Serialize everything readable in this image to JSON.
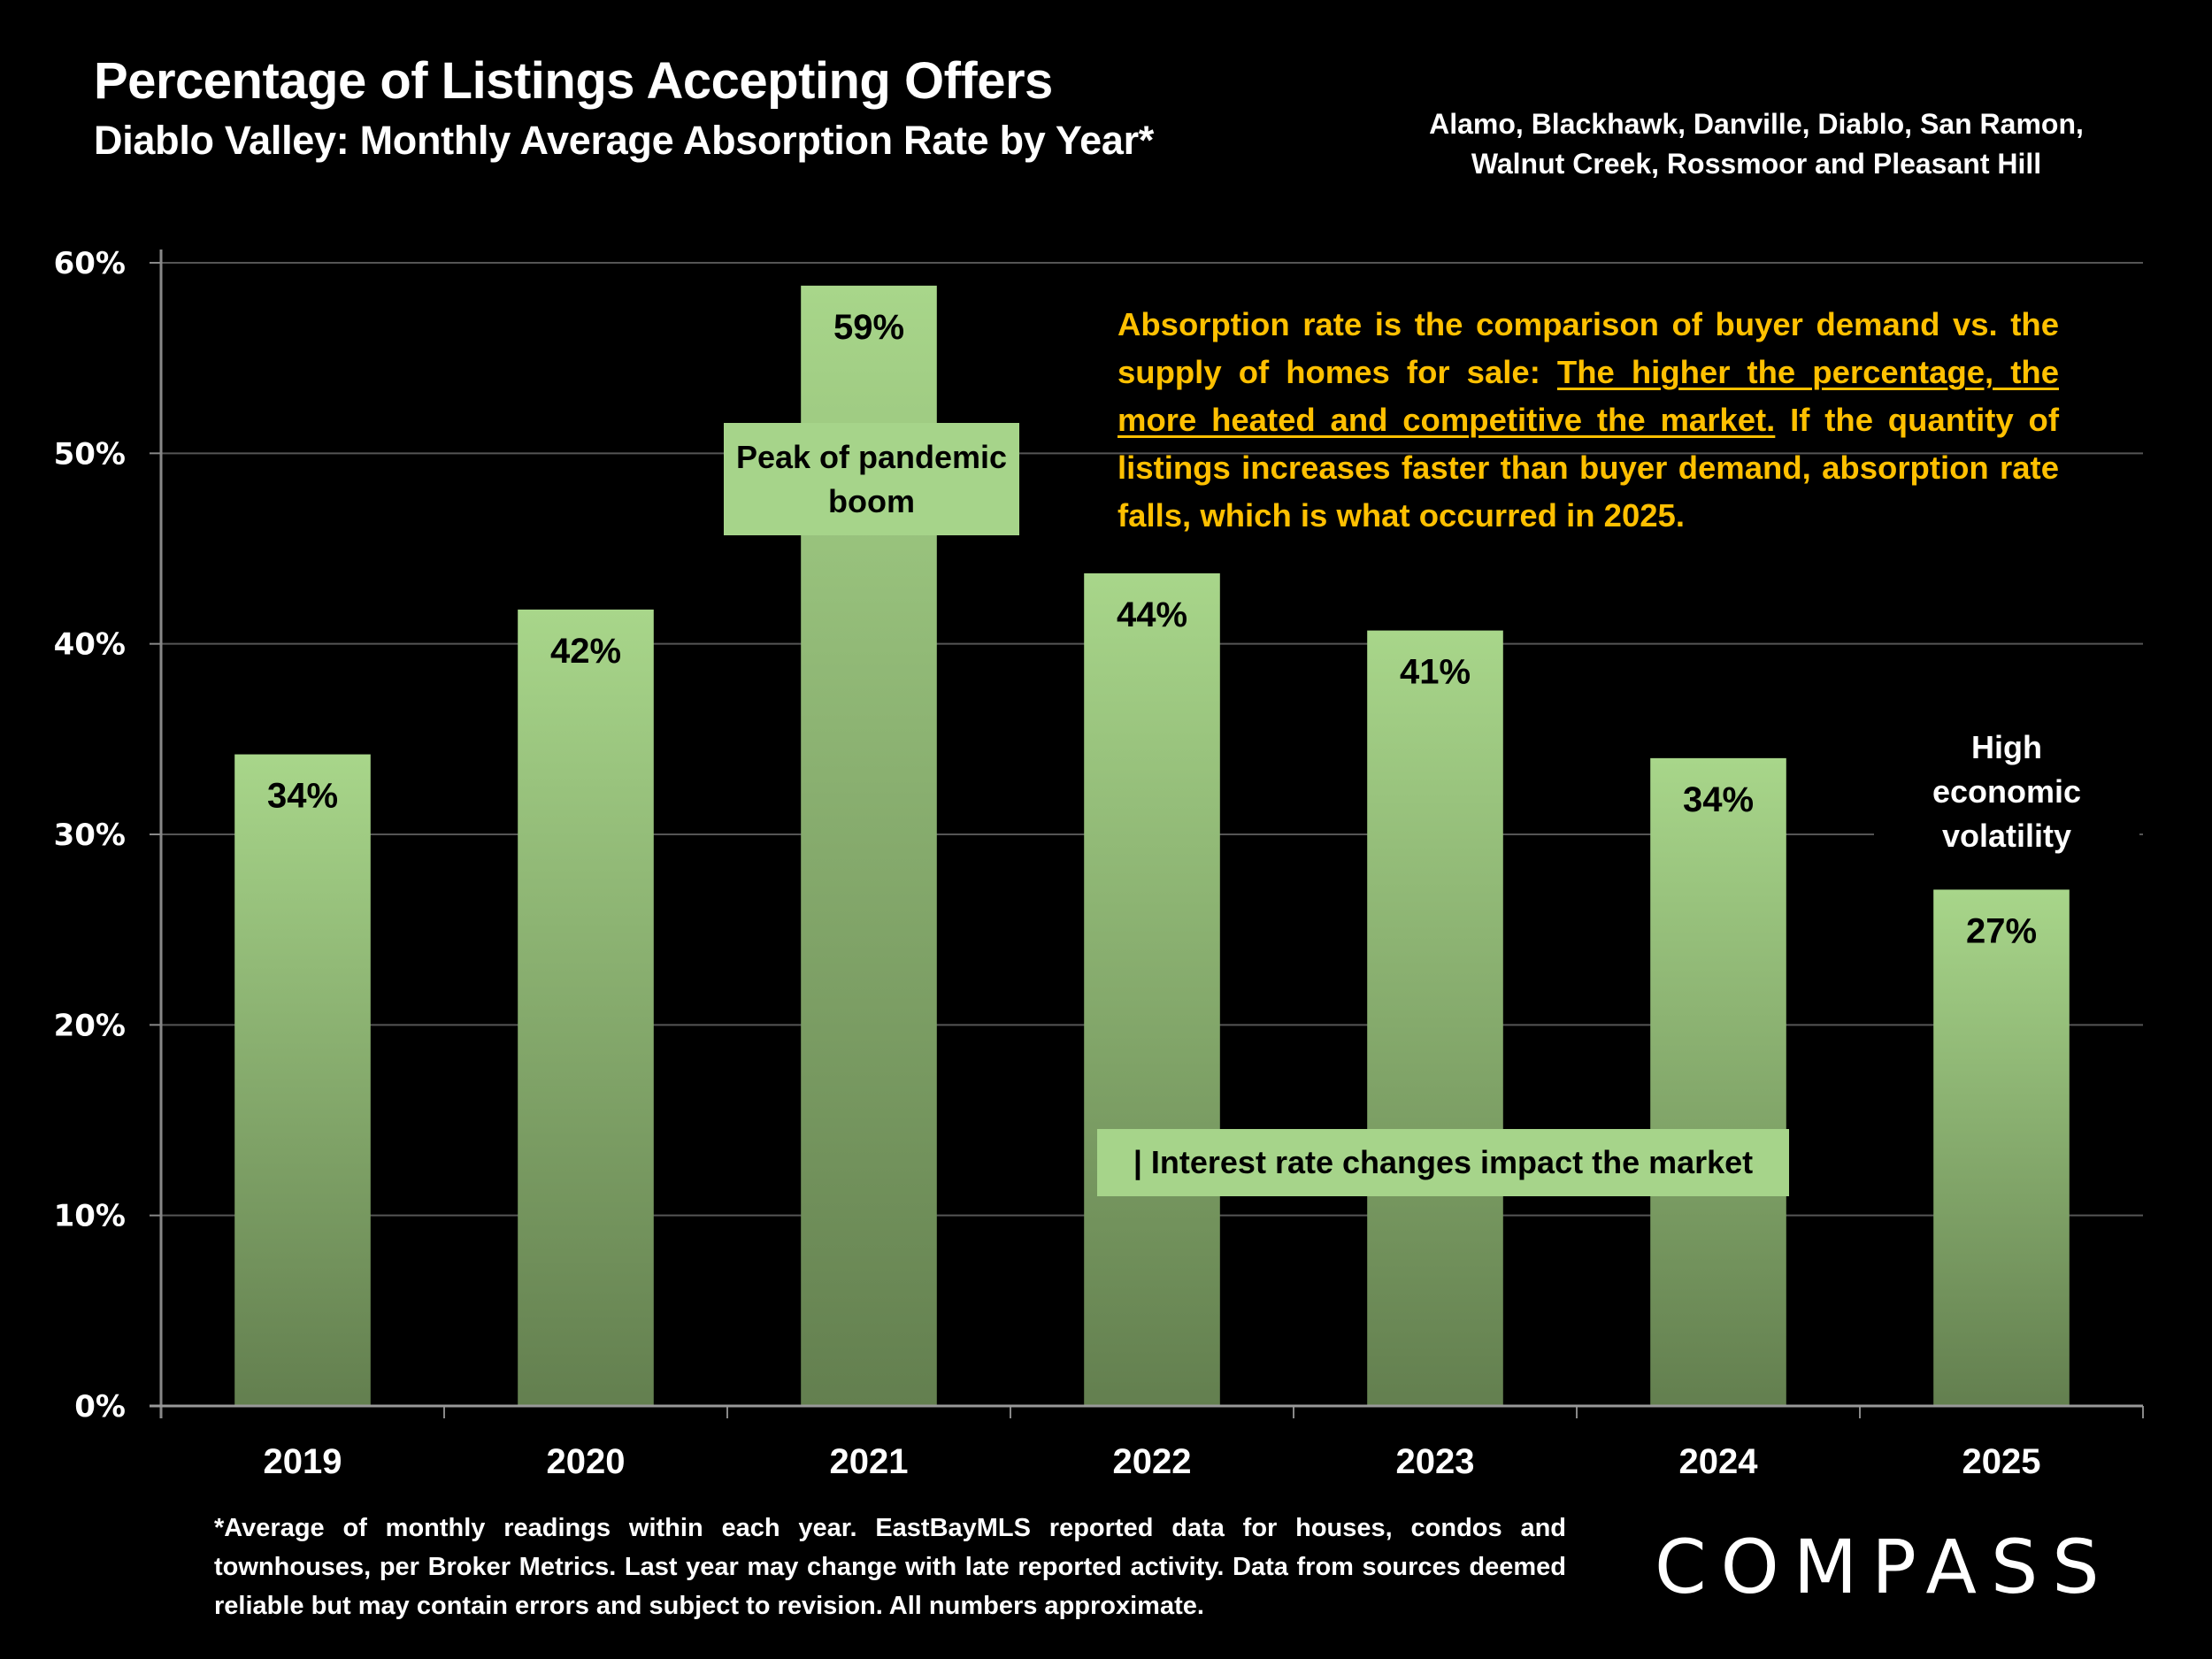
{
  "header": {
    "title": "Percentage of Listings Accepting Offers",
    "subtitle": "Diablo Valley:  Monthly Average Absorption Rate by Year*",
    "regions_line1": "Alamo, Blackhawk, Danville, Diablo, San Ramon,",
    "regions_line2": "Walnut Creek, Rossmoor and Pleasant Hill"
  },
  "note": {
    "part1": "Absorption rate is the comparison of buyer demand vs. the supply of homes for sale: ",
    "underlined": "The higher the percentage, the more heated and competitive the market.",
    "part2": " If the quantity of listings increases faster than buyer demand, absorption rate falls, which is what occurred in 2025.",
    "color": "#ffc000"
  },
  "annotations": {
    "peak": "Peak of pandemic boom",
    "interest": "| Interest rate changes impact the market",
    "volatility_line1": "High",
    "volatility_line2": "economic",
    "volatility_line3": "volatility"
  },
  "footnote": "*Average of monthly readings within each year. EastBayMLS reported data for houses, condos and townhouses, per Broker Metrics.  Last year may change with late reported activity. Data from sources deemed reliable but may contain errors and subject to revision. All numbers approximate.",
  "brand": {
    "logo_text": "COMPASS"
  },
  "colors": {
    "bar_top": "#a8d68a",
    "bar_bottom": "#637f4f",
    "callout": "#a6d48a",
    "background": "#000000",
    "gridline": "#555555"
  },
  "chart_data": {
    "type": "bar",
    "title": "Percentage of Listings Accepting Offers",
    "subtitle": "Diablo Valley: Monthly Average Absorption Rate by Year*",
    "categories": [
      "2019",
      "2020",
      "2021",
      "2022",
      "2023",
      "2024",
      "2025"
    ],
    "values": [
      34.2,
      41.8,
      58.8,
      43.7,
      40.7,
      34.0,
      27.1
    ],
    "data_labels": [
      "34%",
      "42%",
      "59%",
      "44%",
      "41%",
      "34%",
      "27%"
    ],
    "xlabel": "",
    "ylabel": "",
    "ylim": [
      0,
      60
    ],
    "yticks": [
      0,
      10,
      20,
      30,
      40,
      50,
      60
    ],
    "ytick_labels": [
      "0%",
      "10%",
      "20%",
      "30%",
      "40%",
      "50%",
      "60%"
    ],
    "grid": true,
    "legend": "none"
  }
}
